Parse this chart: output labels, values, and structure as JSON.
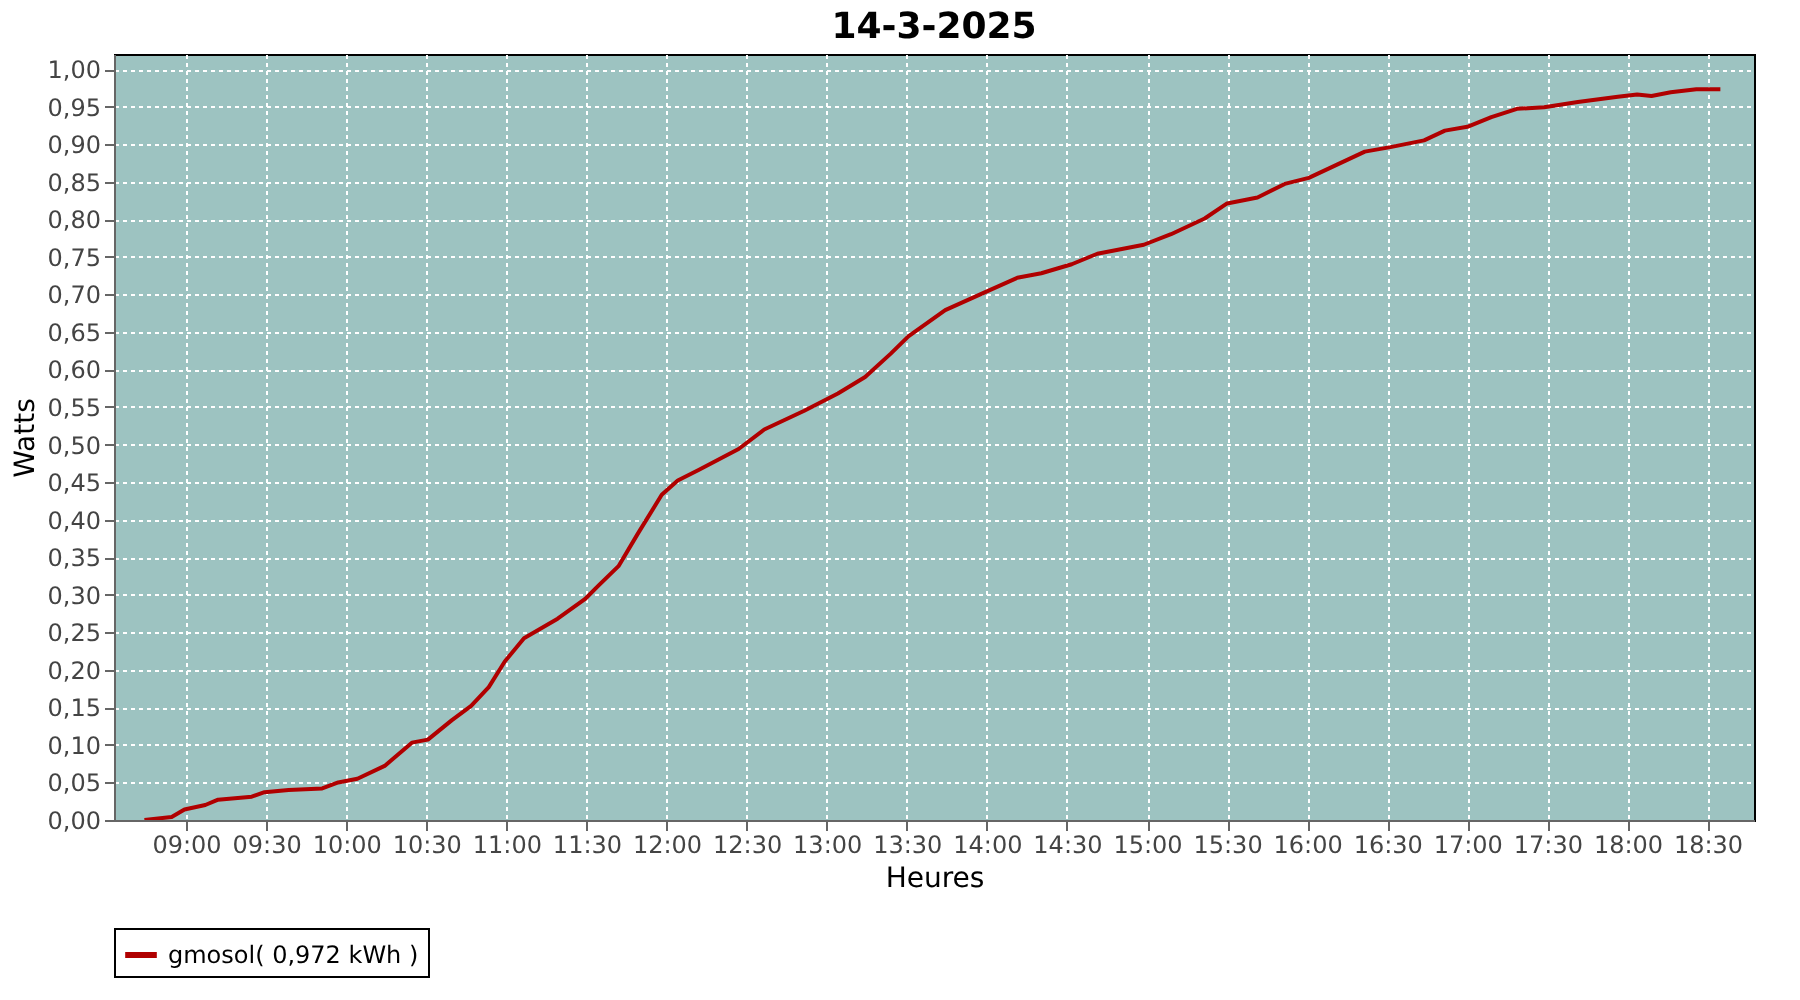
{
  "chart_data": {
    "type": "line",
    "title": "14-3-2025",
    "xlabel": "Heures",
    "ylabel": "Watts",
    "xlim": [
      8.55,
      18.79
    ],
    "ylim": [
      0,
      1.02
    ],
    "xticks": [
      {
        "value": 9,
        "label": "09:00"
      },
      {
        "value": 9.5,
        "label": "09:30"
      },
      {
        "value": 10,
        "label": "10:00"
      },
      {
        "value": 10.5,
        "label": "10:30"
      },
      {
        "value": 11,
        "label": "11:00"
      },
      {
        "value": 11.5,
        "label": "11:30"
      },
      {
        "value": 12,
        "label": "12:00"
      },
      {
        "value": 12.5,
        "label": "12:30"
      },
      {
        "value": 13,
        "label": "13:00"
      },
      {
        "value": 13.5,
        "label": "13:30"
      },
      {
        "value": 14,
        "label": "14:00"
      },
      {
        "value": 14.5,
        "label": "14:30"
      },
      {
        "value": 15,
        "label": "15:00"
      },
      {
        "value": 15.5,
        "label": "15:30"
      },
      {
        "value": 16,
        "label": "16:00"
      },
      {
        "value": 16.5,
        "label": "16:30"
      },
      {
        "value": 17,
        "label": "17:00"
      },
      {
        "value": 17.5,
        "label": "17:30"
      },
      {
        "value": 18,
        "label": "18:00"
      },
      {
        "value": 18.5,
        "label": "18:30"
      }
    ],
    "yticks": [
      {
        "value": 0,
        "label": "0,00"
      },
      {
        "value": 0.05,
        "label": "0,05"
      },
      {
        "value": 0.1,
        "label": "0,10"
      },
      {
        "value": 0.15,
        "label": "0,15"
      },
      {
        "value": 0.2,
        "label": "0,20"
      },
      {
        "value": 0.25,
        "label": "0,25"
      },
      {
        "value": 0.3,
        "label": "0,30"
      },
      {
        "value": 0.35,
        "label": "0,35"
      },
      {
        "value": 0.4,
        "label": "0,40"
      },
      {
        "value": 0.45,
        "label": "0,45"
      },
      {
        "value": 0.5,
        "label": "0,50"
      },
      {
        "value": 0.55,
        "label": "0,55"
      },
      {
        "value": 0.6,
        "label": "0,60"
      },
      {
        "value": 0.65,
        "label": "0,65"
      },
      {
        "value": 0.7,
        "label": "0,70"
      },
      {
        "value": 0.75,
        "label": "0,75"
      },
      {
        "value": 0.8,
        "label": "0,80"
      },
      {
        "value": 0.85,
        "label": "0,85"
      },
      {
        "value": 0.9,
        "label": "0,90"
      },
      {
        "value": 0.95,
        "label": "0,95"
      },
      {
        "value": 1.0,
        "label": "1,00"
      }
    ],
    "grid": true,
    "legend": "bottom",
    "marker": "none",
    "line_style": "solid",
    "series": [
      {
        "name": "gmosol( 0,972 kWh )",
        "color": "#b00000",
        "x": [
          8.74,
          8.91,
          8.99,
          9.12,
          9.2,
          9.41,
          9.49,
          9.64,
          9.85,
          9.95,
          10.07,
          10.24,
          10.41,
          10.51,
          10.66,
          10.78,
          10.89,
          10.99,
          11.11,
          11.32,
          11.49,
          11.57,
          11.7,
          11.82,
          11.97,
          12.07,
          12.2,
          12.45,
          12.61,
          12.86,
          13.07,
          13.24,
          13.4,
          13.51,
          13.74,
          13.99,
          14.19,
          14.34,
          14.53,
          14.69,
          14.98,
          15.15,
          15.36,
          15.5,
          15.69,
          15.86,
          16.01,
          16.19,
          16.36,
          16.52,
          16.73,
          16.86,
          17.0,
          17.15,
          17.31,
          17.48,
          17.69,
          17.94,
          18.06,
          18.15,
          18.27,
          18.43,
          18.58
        ],
        "values": [
          0.0,
          0.004,
          0.014,
          0.02,
          0.027,
          0.031,
          0.037,
          0.04,
          0.042,
          0.05,
          0.055,
          0.072,
          0.103,
          0.107,
          0.133,
          0.152,
          0.177,
          0.211,
          0.242,
          0.268,
          0.294,
          0.311,
          0.338,
          0.381,
          0.433,
          0.452,
          0.466,
          0.494,
          0.52,
          0.545,
          0.568,
          0.59,
          0.621,
          0.644,
          0.679,
          0.703,
          0.722,
          0.728,
          0.74,
          0.754,
          0.766,
          0.78,
          0.801,
          0.821,
          0.829,
          0.847,
          0.855,
          0.873,
          0.89,
          0.896,
          0.905,
          0.918,
          0.923,
          0.936,
          0.947,
          0.949,
          0.956,
          0.963,
          0.966,
          0.964,
          0.969,
          0.973,
          0.973
        ]
      }
    ]
  }
}
